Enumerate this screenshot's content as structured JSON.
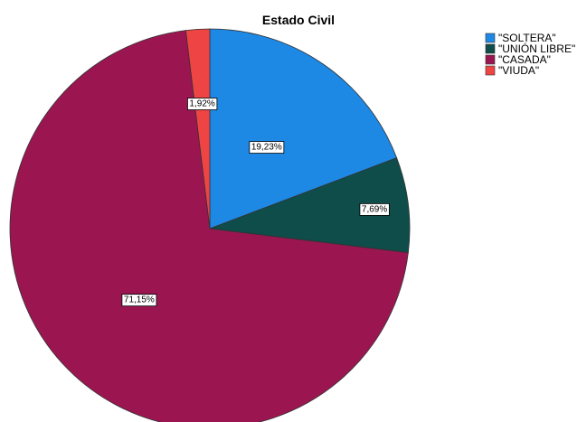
{
  "chart_data": {
    "type": "pie",
    "title": "Estado Civil",
    "legend_position": "top-right",
    "start_angle_deg": 0,
    "direction": "clockwise",
    "slices": [
      {
        "label": "\"SOLTERA\"",
        "value": 19.23,
        "display": "19,23%",
        "color": "#1e88e5"
      },
      {
        "label": "\"UNIÓN LIBRE\"",
        "value": 7.69,
        "display": "7,69%",
        "color": "#0e4d4a"
      },
      {
        "label": "\"CASADA\"",
        "value": 71.15,
        "display": "71,15%",
        "color": "#9b1650"
      },
      {
        "label": "\"VIUDA\"",
        "value": 1.92,
        "display": "1,92%",
        "color": "#ef4444"
      }
    ]
  }
}
